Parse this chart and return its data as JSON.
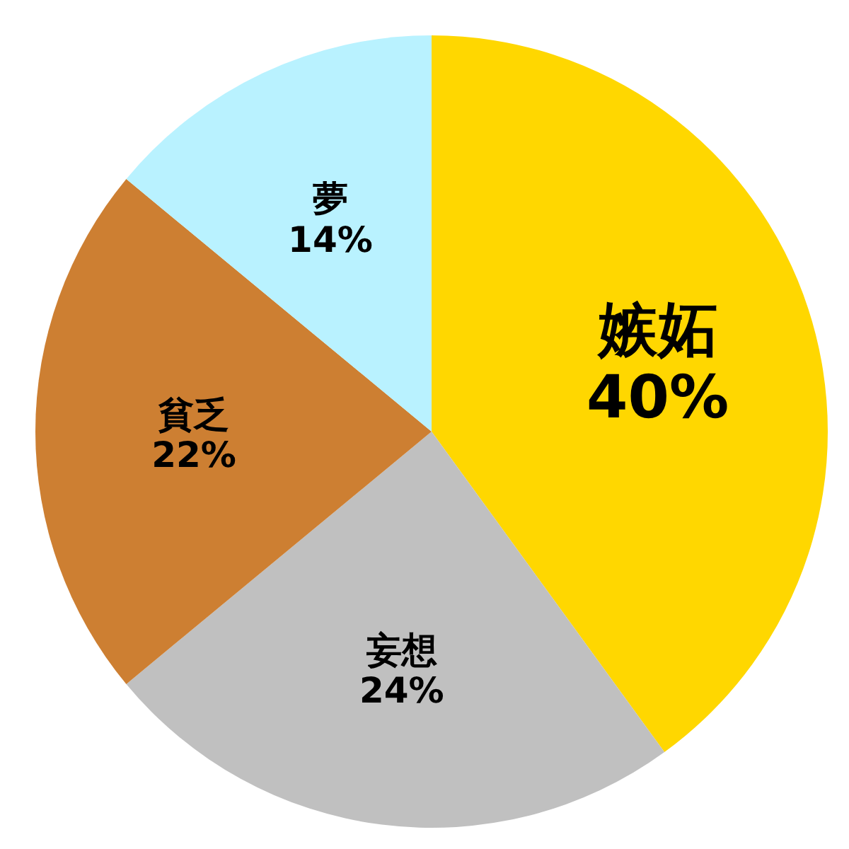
{
  "chart_data": {
    "type": "pie",
    "categories": [
      "嫉妬",
      "妄想",
      "貧乏",
      "夢"
    ],
    "values": [
      40,
      24,
      22,
      14
    ],
    "value_labels": [
      "40%",
      "24%",
      "22%",
      "14%"
    ],
    "colors": [
      "#ffd700",
      "#c0c0c0",
      "#cd7f32",
      "#b9f2ff"
    ],
    "legend": false
  }
}
